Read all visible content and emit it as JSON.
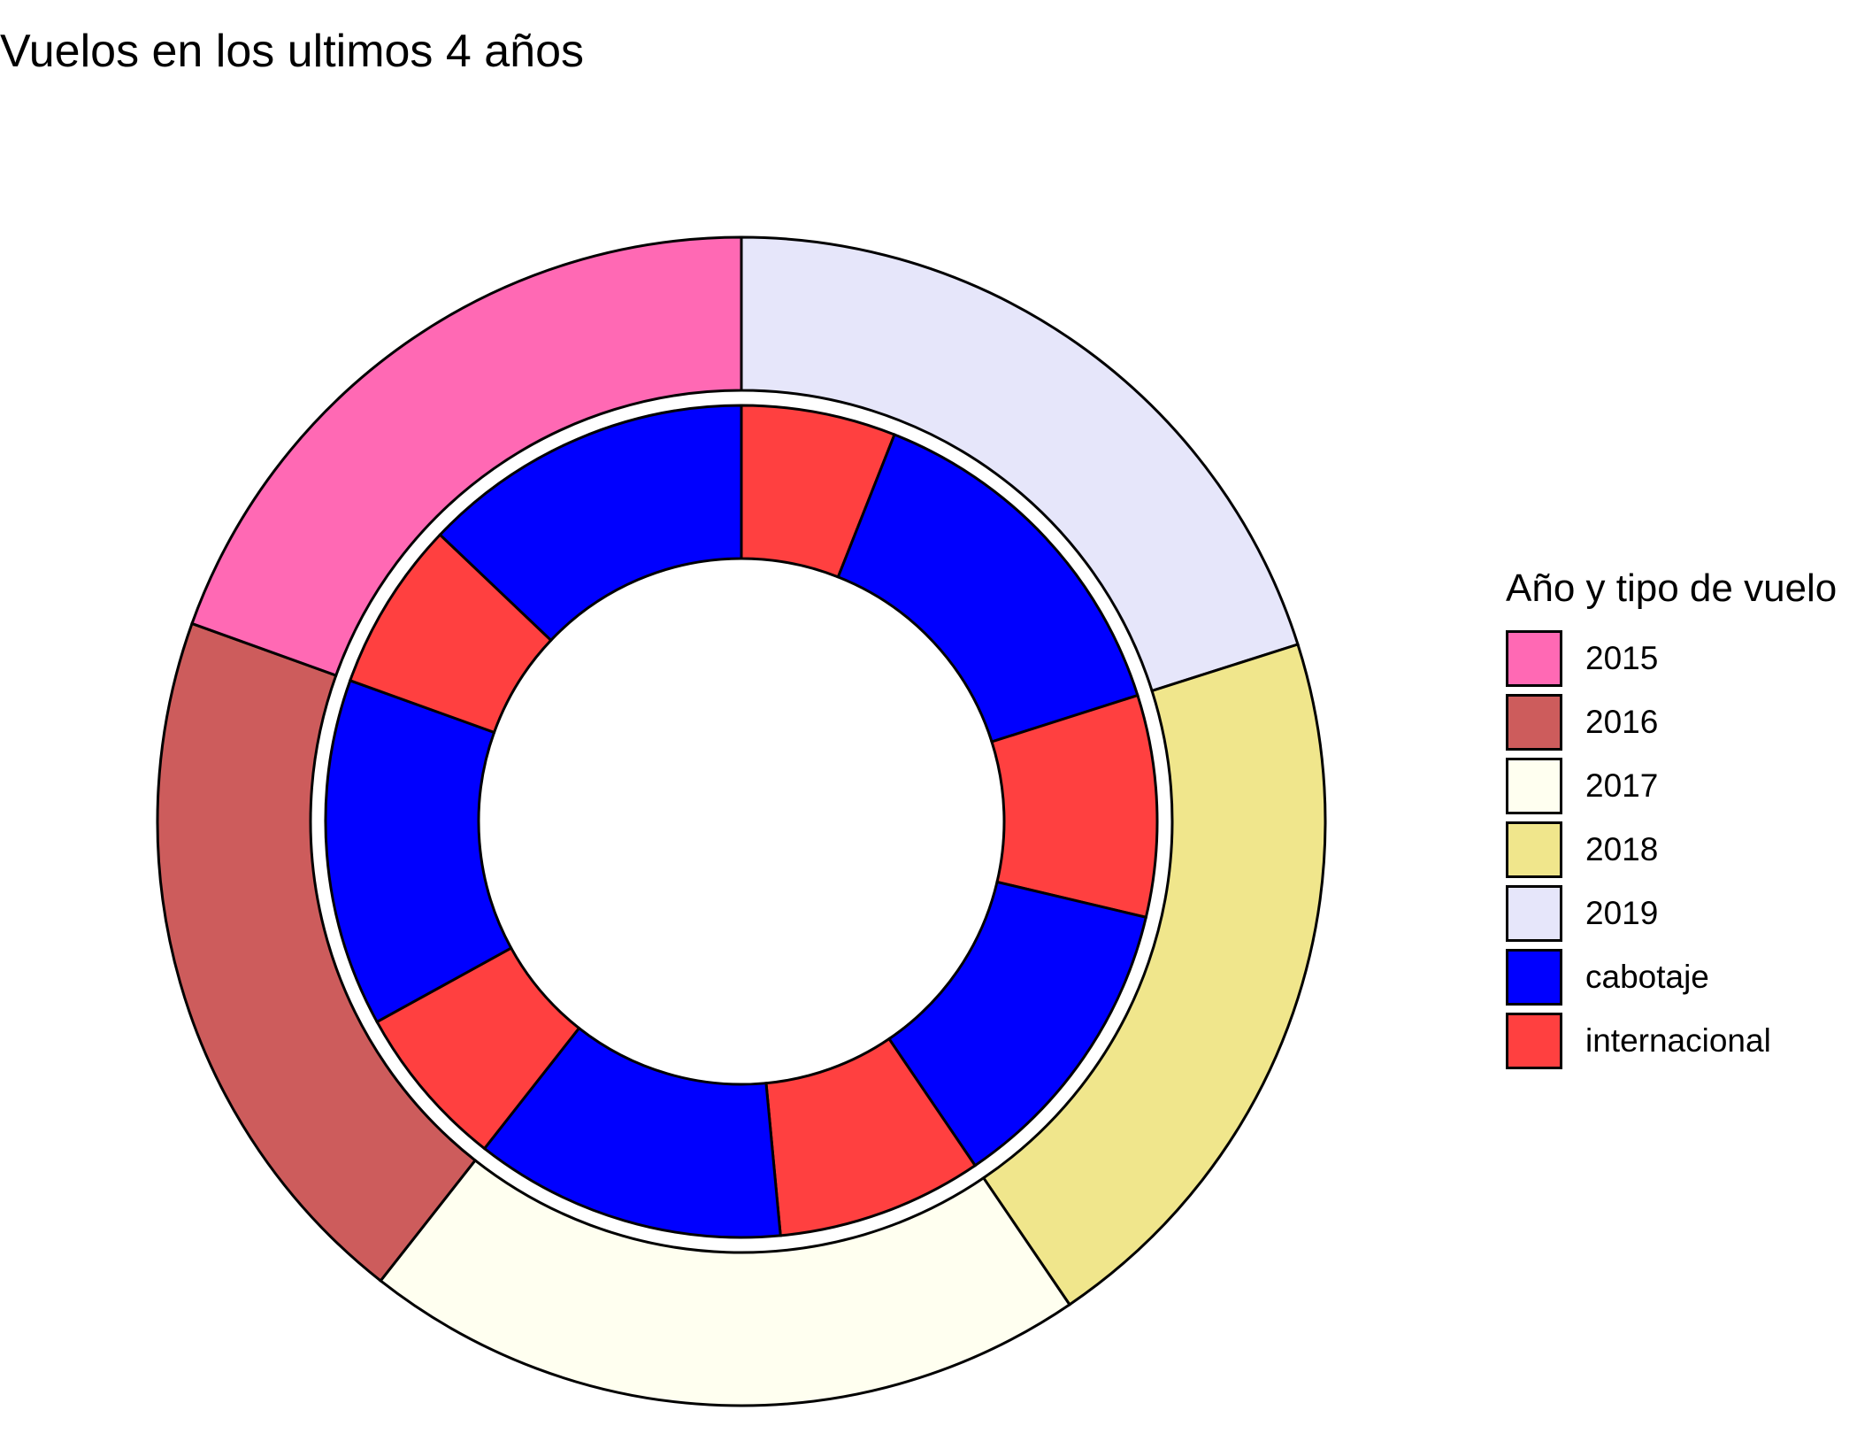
{
  "chart_data": {
    "type": "pie",
    "subtype": "nested-donut",
    "title": "Vuelos en los ultimos 4 años",
    "legend": {
      "title": "Año y tipo de vuelo",
      "placement": "right",
      "entries": [
        {
          "label": "2015",
          "color": "#FF69B4"
        },
        {
          "label": "2016",
          "color": "#CD5C5C"
        },
        {
          "label": "2017",
          "color": "#FFFFF0"
        },
        {
          "label": "2018",
          "color": "#F0E68C"
        },
        {
          "label": "2019",
          "color": "#E6E6FA"
        },
        {
          "label": "cabotaje",
          "color": "#0000FF"
        },
        {
          "label": "internacional",
          "color": "#FF4040"
        }
      ]
    },
    "outer_ring": [
      {
        "category": "2019",
        "share": 0.201
      },
      {
        "category": "2018",
        "share": 0.204
      },
      {
        "category": "2017",
        "share": 0.201
      },
      {
        "category": "2016",
        "share": 0.199
      },
      {
        "category": "2015",
        "share": 0.195
      }
    ],
    "inner_ring": [
      {
        "category": "internacional",
        "share": 0.06,
        "year": "2019"
      },
      {
        "category": "cabotaje",
        "share": 0.141,
        "year": "2019"
      },
      {
        "category": "internacional",
        "share": 0.086,
        "year": "2018"
      },
      {
        "category": "cabotaje",
        "share": 0.118,
        "year": "2018"
      },
      {
        "category": "internacional",
        "share": 0.08,
        "year": "2017"
      },
      {
        "category": "cabotaje",
        "share": 0.121,
        "year": "2017"
      },
      {
        "category": "internacional",
        "share": 0.064,
        "year": "2016"
      },
      {
        "category": "cabotaje",
        "share": 0.135,
        "year": "2016"
      },
      {
        "category": "internacional",
        "share": 0.066,
        "year": "2015"
      },
      {
        "category": "cabotaje",
        "share": 0.129,
        "year": "2015"
      }
    ]
  }
}
